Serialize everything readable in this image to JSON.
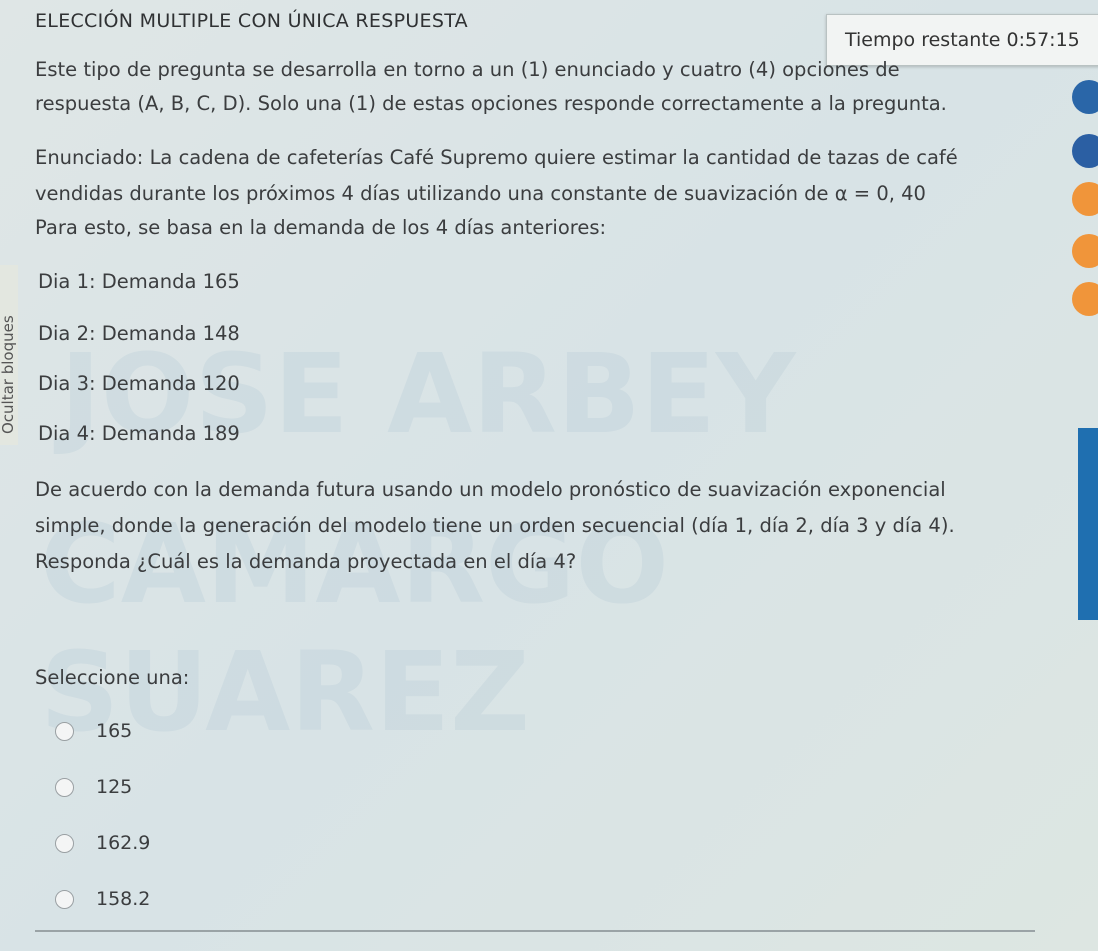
{
  "question": {
    "type_title": "ELECCIÓN MULTIPLE CON ÚNICA RESPUESTA",
    "timer": "Tiempo restante 0:57:15",
    "instructions": [
      "Este tipo de pregunta se desarrolla en torno a un (1) enunciado y cuatro (4) opciones de",
      "respuesta (A, B, C, D). Solo una (1) de estas opciones responde correctamente a la pregunta."
    ],
    "statement": [
      "Enunciado: La cadena de cafeterías Café Supremo quiere estimar la cantidad de tazas de café",
      "vendidas durante los próximos 4 días utilizando una constante de suavización de α = 0, 40",
      "Para esto, se basa en la demanda de los 4 días anteriores:"
    ],
    "demands": [
      "Dia 1: Demanda 165",
      "Dia 2: Demanda 148",
      "Dia 3: Demanda 120",
      "Dia 4: Demanda 189"
    ],
    "prompt": [
      "De acuerdo con la demanda futura usando un modelo pronóstico de suavización exponencial",
      "simple, donde la generación del modelo tiene un orden secuencial (día 1, día 2, día 3 y día 4).",
      "Responda ¿Cuál es la demanda proyectada en el día 4?"
    ],
    "select_label": "Seleccione una:",
    "options": [
      "165",
      "125",
      "162.9",
      "158.2"
    ]
  },
  "sidebar": {
    "toggle_label": "Ocultar bloques"
  },
  "watermark": [
    "JOSE ARBEY",
    "CAMARGO SUAREZ"
  ],
  "colors": {
    "accent": "#1f6fb0",
    "background": "#d8e3e6"
  }
}
